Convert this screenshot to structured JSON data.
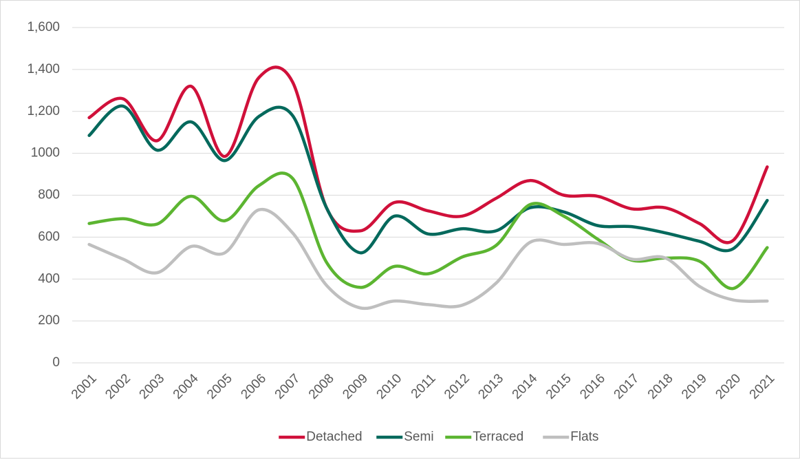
{
  "chart_data": {
    "type": "line",
    "categories": [
      "2001",
      "2002",
      "2003",
      "2004",
      "2005",
      "2006",
      "2007",
      "2008",
      "2009",
      "2010",
      "2011",
      "2012",
      "2013",
      "2014",
      "2015",
      "2016",
      "2017",
      "2018",
      "2019",
      "2020",
      "2021"
    ],
    "series": [
      {
        "name": "Detached",
        "color": "#d0103a",
        "values": [
          1170,
          1260,
          1060,
          1320,
          985,
          1360,
          1340,
          740,
          630,
          765,
          725,
          700,
          785,
          870,
          800,
          795,
          735,
          740,
          665,
          585,
          935
        ]
      },
      {
        "name": "Semi",
        "color": "#04695c",
        "values": [
          1085,
          1225,
          1015,
          1150,
          965,
          1175,
          1180,
          740,
          525,
          700,
          615,
          640,
          630,
          740,
          720,
          655,
          650,
          620,
          580,
          545,
          775
        ]
      },
      {
        "name": "Terraced",
        "color": "#5cb531",
        "values": [
          665,
          688,
          662,
          795,
          678,
          845,
          880,
          480,
          360,
          460,
          425,
          505,
          560,
          755,
          700,
          590,
          490,
          500,
          485,
          355,
          550
        ]
      },
      {
        "name": "Flats",
        "color": "#bfbfbf",
        "values": [
          565,
          495,
          430,
          555,
          525,
          730,
          620,
          370,
          262,
          295,
          278,
          275,
          380,
          575,
          565,
          570,
          495,
          500,
          365,
          300,
          295
        ]
      }
    ],
    "ylim": [
      0,
      1600
    ],
    "yticks": [
      0,
      200,
      400,
      600,
      800,
      1000,
      {
        "value": 1200,
        "label": "1,200"
      },
      {
        "value": 1400,
        "label": "1,400"
      },
      {
        "value": 1600,
        "label": "1,600"
      }
    ],
    "grid": true,
    "legend": "bottom"
  }
}
